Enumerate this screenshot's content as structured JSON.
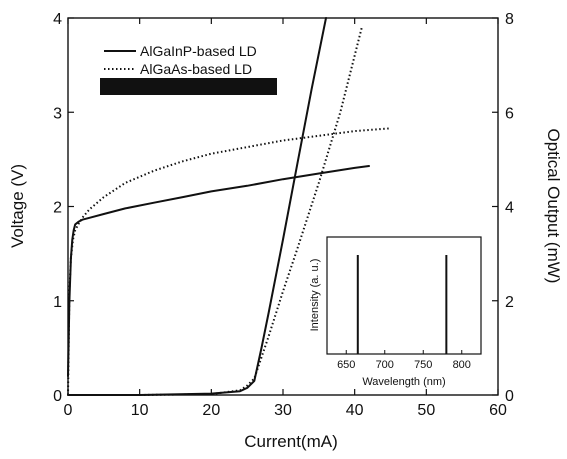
{
  "chart_data": {
    "type": "line",
    "xlabel": "Current(mA)",
    "ylabel_left": "Voltage (V)",
    "ylabel_right": "Optical Output (mW)",
    "xlim": [
      0,
      60
    ],
    "ylim_left": [
      0,
      4
    ],
    "ylim_right": [
      0,
      8
    ],
    "x_ticks": [
      "0",
      "10",
      "20",
      "30",
      "40",
      "50",
      "60"
    ],
    "y_ticks_left": [
      "0",
      "1",
      "2",
      "3",
      "4"
    ],
    "y_ticks_right": [
      "0",
      "2",
      "4",
      "6",
      "8"
    ],
    "legend_position": "top-left",
    "legend": {
      "algainp": "AlGaInP-based LD",
      "algaas": "AlGaAs-based LD"
    },
    "series": [
      {
        "name": "AlGaInP-based LD",
        "quantity": "voltage",
        "axis": "left",
        "style": "solid",
        "x": [
          0,
          0.2,
          0.4,
          0.6,
          0.8,
          1,
          1.5,
          2,
          3,
          5,
          8,
          12,
          16,
          20,
          25,
          30,
          35,
          40,
          42
        ],
        "y": [
          0.2,
          1.0,
          1.45,
          1.65,
          1.75,
          1.81,
          1.84,
          1.86,
          1.88,
          1.92,
          1.98,
          2.04,
          2.1,
          2.16,
          2.22,
          2.29,
          2.35,
          2.41,
          2.43
        ]
      },
      {
        "name": "AlGaInP-based LD",
        "quantity": "optical output",
        "axis": "right",
        "style": "solid",
        "x": [
          0,
          10,
          20,
          24,
          25,
          26,
          27,
          28,
          30,
          32,
          34,
          36
        ],
        "y": [
          0,
          0,
          0.03,
          0.08,
          0.15,
          0.3,
          1.0,
          1.75,
          3.3,
          4.9,
          6.5,
          8.0
        ]
      },
      {
        "name": "AlGaAs-based LD",
        "quantity": "voltage",
        "axis": "left",
        "style": "dotted",
        "x": [
          0,
          0.2,
          0.4,
          0.7,
          1,
          1.5,
          2,
          3,
          5,
          8,
          12,
          16,
          20,
          25,
          30,
          35,
          40,
          45
        ],
        "y": [
          0.0,
          1.1,
          1.45,
          1.65,
          1.75,
          1.82,
          1.88,
          1.97,
          2.1,
          2.25,
          2.38,
          2.48,
          2.56,
          2.63,
          2.7,
          2.75,
          2.8,
          2.83
        ]
      },
      {
        "name": "AlGaAs-based LD",
        "quantity": "optical output",
        "axis": "right",
        "style": "dotted",
        "x": [
          0,
          10,
          20,
          24,
          25,
          26,
          27,
          28,
          30,
          32,
          35,
          38,
          41
        ],
        "y": [
          0,
          0,
          0.02,
          0.1,
          0.2,
          0.35,
          0.8,
          1.25,
          2.2,
          3.1,
          4.5,
          6.0,
          7.8
        ]
      }
    ],
    "inset": {
      "type": "line",
      "xlabel": "Wavelength (nm)",
      "ylabel": "Intensity (a. u.)",
      "xlim": [
        625,
        825
      ],
      "x_ticks": [
        "650",
        "700",
        "750",
        "800"
      ],
      "peaks": [
        {
          "series": "AlGaInP-based LD",
          "wavelength": 665,
          "intensity": 1.0
        },
        {
          "series": "AlGaAs-based LD",
          "wavelength": 780,
          "intensity": 1.0
        }
      ]
    }
  }
}
